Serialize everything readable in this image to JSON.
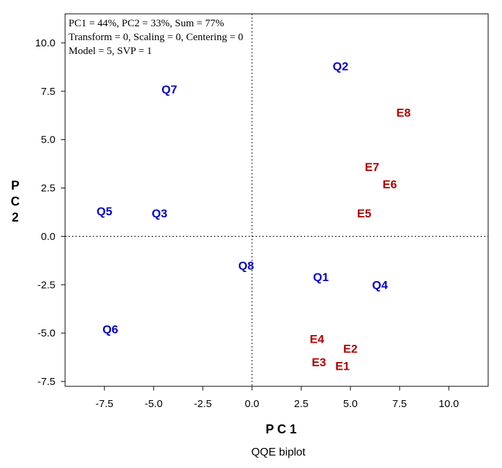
{
  "chart_data": {
    "type": "scatter",
    "title": "QQE biplot",
    "xlabel": "P C 1",
    "ylabel_letters": [
      "P",
      "C",
      "2"
    ],
    "xlim": [
      -9.5,
      12.0
    ],
    "ylim": [
      -7.75,
      11.5
    ],
    "xticks": [
      -7.5,
      -5.0,
      -2.5,
      0.0,
      2.5,
      5.0,
      7.5,
      10.0
    ],
    "yticks": [
      -7.5,
      -5.0,
      -2.5,
      0.0,
      2.5,
      5.0,
      7.5,
      10.0
    ],
    "xtick_labels": [
      "-7.5",
      "-5.0",
      "-2.5",
      "0.0",
      "2.5",
      "5.0",
      "7.5",
      "10.0"
    ],
    "ytick_labels": [
      "-7.5",
      "-5.0",
      "-2.5",
      "0.0",
      "2.5",
      "5.0",
      "7.5",
      "10.0"
    ],
    "reference_lines": {
      "x": 0,
      "y": 0,
      "style": "dotted"
    },
    "annotations": [
      "PC1 = 44%, PC2 = 33%, Sum = 77%",
      "Transform = 0, Scaling = 0, Centering = 0",
      "Model = 5, SVP = 1"
    ],
    "series": [
      {
        "color": "#0000cc",
        "points": [
          {
            "label": "Q1",
            "x": 3.5,
            "y": -2.1
          },
          {
            "label": "Q2",
            "x": 4.5,
            "y": 8.8
          },
          {
            "label": "Q3",
            "x": -4.7,
            "y": 1.2
          },
          {
            "label": "Q4",
            "x": 6.5,
            "y": -2.5
          },
          {
            "label": "Q5",
            "x": -7.5,
            "y": 1.3
          },
          {
            "label": "Q6",
            "x": -7.2,
            "y": -4.8
          },
          {
            "label": "Q7",
            "x": -4.2,
            "y": 7.6
          },
          {
            "label": "Q8",
            "x": -0.3,
            "y": -1.5
          }
        ]
      },
      {
        "color": "#b00000",
        "points": [
          {
            "label": "E1",
            "x": 4.6,
            "y": -6.7
          },
          {
            "label": "E2",
            "x": 5.0,
            "y": -5.8
          },
          {
            "label": "E3",
            "x": 3.4,
            "y": -6.5
          },
          {
            "label": "E4",
            "x": 3.3,
            "y": -5.3
          },
          {
            "label": "E5",
            "x": 5.7,
            "y": 1.2
          },
          {
            "label": "E6",
            "x": 7.0,
            "y": 2.7
          },
          {
            "label": "E7",
            "x": 6.1,
            "y": 3.6
          },
          {
            "label": "E8",
            "x": 7.7,
            "y": 6.4
          }
        ]
      }
    ]
  }
}
